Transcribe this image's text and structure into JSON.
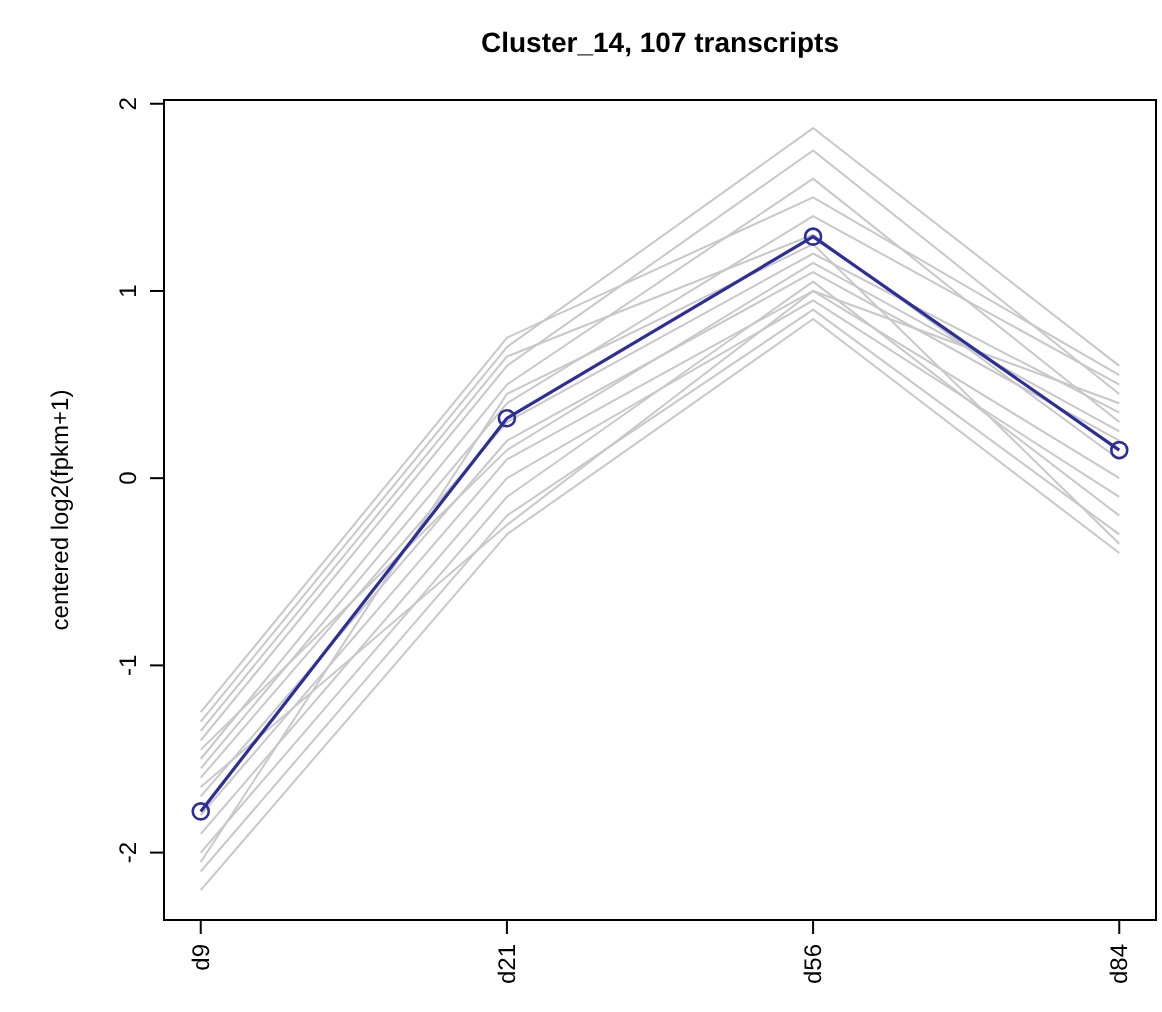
{
  "chart_data": {
    "type": "line",
    "title": "Cluster_14, 107 transcripts",
    "ylabel": "centered log2(fpkm+1)",
    "categories": [
      "d9",
      "d21",
      "d56",
      "d84"
    ],
    "ylim": [
      -2.36,
      2.02
    ],
    "yticks": [
      -2,
      -1,
      0,
      1,
      2
    ],
    "grid": false,
    "series": [
      {
        "color": "#c8c8c8",
        "marker": "none",
        "values": [
          -1.25,
          0.75,
          1.5,
          0.55
        ]
      },
      {
        "color": "#c8c8c8",
        "marker": "none",
        "values": [
          -1.3,
          0.7,
          1.87,
          0.6
        ]
      },
      {
        "color": "#c8c8c8",
        "marker": "none",
        "values": [
          -1.4,
          0.6,
          1.75,
          0.45
        ]
      },
      {
        "color": "#c8c8c8",
        "marker": "none",
        "values": [
          -1.5,
          0.5,
          1.6,
          0.3
        ]
      },
      {
        "color": "#c8c8c8",
        "marker": "none",
        "values": [
          -1.55,
          0.4,
          1.4,
          0.5
        ]
      },
      {
        "color": "#c8c8c8",
        "marker": "none",
        "values": [
          -1.6,
          0.3,
          1.2,
          0.35
        ]
      },
      {
        "color": "#c8c8c8",
        "marker": "none",
        "values": [
          -1.7,
          0.2,
          1.1,
          0.2
        ]
      },
      {
        "color": "#c8c8c8",
        "marker": "none",
        "values": [
          -1.8,
          0.1,
          1.0,
          0.0
        ]
      },
      {
        "color": "#c8c8c8",
        "marker": "none",
        "values": [
          -1.9,
          0.0,
          0.95,
          -0.1
        ]
      },
      {
        "color": "#c8c8c8",
        "marker": "none",
        "values": [
          -2.0,
          -0.1,
          1.05,
          -0.2
        ]
      },
      {
        "color": "#c8c8c8",
        "marker": "none",
        "values": [
          -2.1,
          -0.2,
          0.9,
          -0.3
        ]
      },
      {
        "color": "#c8c8c8",
        "marker": "none",
        "values": [
          -2.2,
          -0.3,
          0.85,
          -0.4
        ]
      },
      {
        "color": "#c8c8c8",
        "marker": "none",
        "values": [
          -1.35,
          0.65,
          1.3,
          0.1
        ]
      },
      {
        "color": "#c8c8c8",
        "marker": "none",
        "values": [
          -2.05,
          0.45,
          1.25,
          -0.35
        ]
      },
      {
        "color": "#c8c8c8",
        "marker": "none",
        "values": [
          -1.65,
          -0.25,
          1.0,
          0.4
        ]
      },
      {
        "color": "#c8c8c8",
        "marker": "none",
        "values": [
          -1.45,
          0.15,
          1.15,
          0.25
        ]
      },
      {
        "color": "#2e2e9a",
        "marker": "circle",
        "values": [
          -1.78,
          0.32,
          1.29,
          0.15
        ]
      }
    ]
  }
}
